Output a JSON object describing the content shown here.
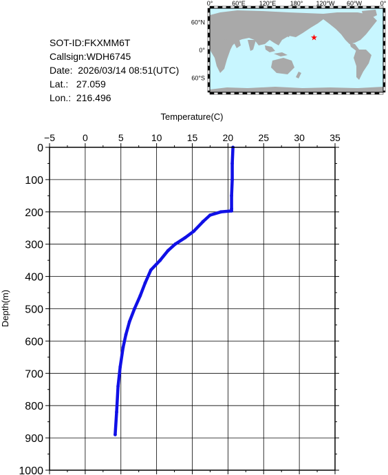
{
  "header": {
    "sot_id": "SOT-ID:FKXMM6T",
    "callsign": "Callsign:WDH6745",
    "date": "Date:  2026/03/14 08:51(UTC)",
    "lat": "Lat.:   27.059",
    "lon": "Lon.:  216.496"
  },
  "map": {
    "lon_labels": [
      "0°",
      "60°E",
      "120°E",
      "180°",
      "120°W",
      "60°W",
      "0°"
    ],
    "lat_labels": [
      "60°N",
      "0°",
      "60°S"
    ],
    "ocean_color": "#c8f6ff",
    "land_color": "#a9a9a9",
    "marker_color": "#ff0000",
    "marker": {
      "lat": 27.059,
      "lon": 216.496
    }
  },
  "chart_data": {
    "type": "line",
    "xlabel": "Temperature(C)",
    "ylabel": "Depth(m)",
    "xlim": [
      -5,
      35
    ],
    "ylim": [
      1000,
      0
    ],
    "x_ticks": [
      -5,
      0,
      5,
      10,
      15,
      20,
      25,
      30,
      35
    ],
    "y_ticks": [
      0,
      100,
      200,
      300,
      400,
      500,
      600,
      700,
      800,
      900,
      1000
    ],
    "grid": true,
    "line_color": "#1010e6",
    "series": [
      {
        "x": [
          20.7,
          20.6,
          20.6,
          20.5,
          20.5,
          20.5,
          19.0,
          17.5,
          16.5,
          15.2,
          14.0,
          12.6,
          11.6,
          10.5,
          9.2,
          8.4,
          7.7,
          6.9,
          6.2,
          5.7,
          5.3,
          4.9,
          4.6,
          4.4,
          4.2
        ],
        "y": [
          0,
          50,
          100,
          150,
          190,
          197,
          200,
          210,
          230,
          260,
          280,
          300,
          320,
          350,
          380,
          420,
          460,
          500,
          540,
          580,
          620,
          680,
          740,
          820,
          890
        ]
      }
    ]
  }
}
